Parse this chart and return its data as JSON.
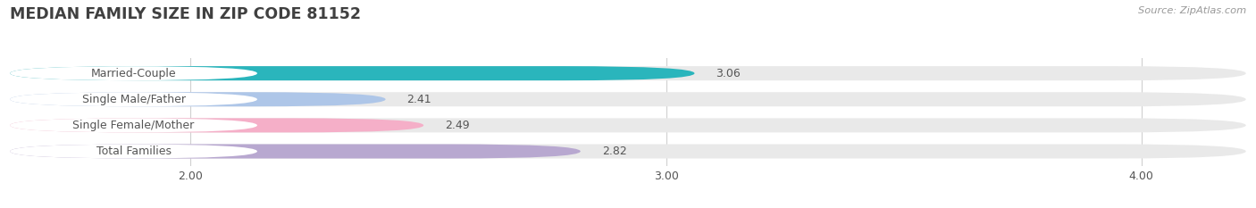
{
  "title": "MEDIAN FAMILY SIZE IN ZIP CODE 81152",
  "source": "Source: ZipAtlas.com",
  "categories": [
    "Married-Couple",
    "Single Male/Father",
    "Single Female/Mother",
    "Total Families"
  ],
  "values": [
    3.06,
    2.41,
    2.49,
    2.82
  ],
  "bar_colors": [
    "#2ab5bc",
    "#aec6e8",
    "#f5afc8",
    "#b8a8d0"
  ],
  "bar_bg_color": "#e9e9e9",
  "xlim_min": 1.62,
  "xlim_max": 4.22,
  "xticks": [
    2.0,
    3.0,
    4.0
  ],
  "xtick_labels": [
    "2.00",
    "3.00",
    "4.00"
  ],
  "label_fontsize": 9.0,
  "value_fontsize": 9.0,
  "title_fontsize": 12.5,
  "bar_height": 0.55,
  "background_color": "#ffffff",
  "text_color": "#555555",
  "title_color": "#404040",
  "grid_color": "#d0d0d0",
  "source_color": "#999999"
}
